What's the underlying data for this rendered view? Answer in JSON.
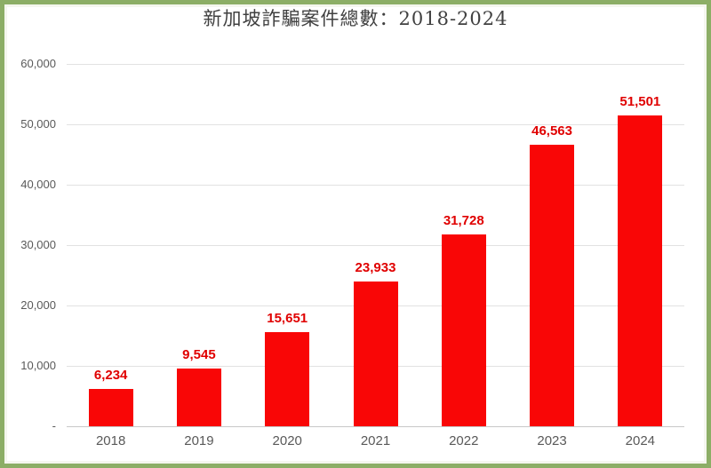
{
  "frame": {
    "border_color": "#8cae66",
    "inner_edge_color": "#f4f6ee",
    "background": "#ffffff"
  },
  "chart_data": {
    "type": "bar",
    "title": "新加坡詐騙案件總數：2018-2024",
    "categories": [
      "2018",
      "2019",
      "2020",
      "2021",
      "2022",
      "2023",
      "2024"
    ],
    "values": [
      6234,
      9545,
      15651,
      23933,
      31728,
      46563,
      51501
    ],
    "value_labels": [
      "6,234",
      "9,545",
      "15,651",
      "23,933",
      "31,728",
      "46,563",
      "51,501"
    ],
    "xlabel": "",
    "ylabel": "",
    "ylim": [
      0,
      60000
    ],
    "ytick_interval": 10000,
    "ytick_labels": [
      "-",
      "10,000",
      "20,000",
      "30,000",
      "40,000",
      "50,000",
      "60,000"
    ],
    "grid": true,
    "legend_position": "none",
    "bar_color": "#f90606",
    "value_label_color": "#e00000",
    "axis_text_color": "#595959",
    "title_color": "#404040",
    "gridline_color": "#e2e2e2",
    "axis_line_color": "#c8c8c8"
  }
}
